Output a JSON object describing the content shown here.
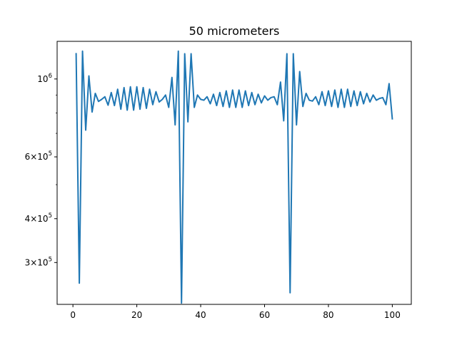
{
  "chart_data": {
    "type": "line",
    "title": "50 micrometers",
    "xlabel": "",
    "ylabel": "",
    "xlim": [
      -4.95,
      105.95
    ],
    "ylim": [
      228000,
      1280000
    ],
    "yscale": "log",
    "grid": false,
    "line_color": "#1f77b4",
    "x_ticks": [
      {
        "value": 0,
        "label": "0"
      },
      {
        "value": 20,
        "label": "20"
      },
      {
        "value": 40,
        "label": "40"
      },
      {
        "value": 60,
        "label": "60"
      },
      {
        "value": 80,
        "label": "80"
      },
      {
        "value": 100,
        "label": "100"
      }
    ],
    "y_ticks": [
      {
        "value": 300000,
        "base": "3",
        "exp": "5"
      },
      {
        "value": 400000,
        "base": "4",
        "exp": "5"
      },
      {
        "value": 600000,
        "base": "6",
        "exp": "5"
      },
      {
        "value": 1000000,
        "base": "",
        "exp": "6"
      }
    ],
    "y_minor_ticks": [
      500000,
      700000,
      800000,
      900000
    ],
    "series": [
      {
        "x": [
          1,
          2,
          3,
          4,
          5,
          6,
          7,
          8,
          9,
          10,
          11,
          12,
          13,
          14,
          15,
          16,
          17,
          18,
          19,
          20,
          21,
          22,
          23,
          24,
          25,
          26,
          27,
          28,
          29,
          30,
          31,
          32,
          33,
          34,
          35,
          36,
          37,
          38,
          39,
          40,
          41,
          42,
          43,
          44,
          45,
          46,
          47,
          48,
          49,
          50,
          51,
          52,
          53,
          54,
          55,
          56,
          57,
          58,
          59,
          60,
          61,
          62,
          63,
          64,
          65,
          66,
          67,
          68,
          69,
          70,
          71,
          72,
          73,
          74,
          75,
          76,
          77,
          78,
          79,
          80,
          81,
          82,
          83,
          84,
          85,
          86,
          87,
          88,
          89,
          90,
          91,
          92,
          93,
          94,
          95,
          96,
          97,
          98,
          99,
          100
        ],
        "y": [
          1180000,
          262000,
          1200000,
          715000,
          1020000,
          805000,
          910000,
          863000,
          875000,
          890000,
          842000,
          915000,
          840000,
          935000,
          820000,
          945000,
          815000,
          950000,
          815000,
          950000,
          820000,
          945000,
          825000,
          935000,
          845000,
          920000,
          860000,
          875000,
          900000,
          830000,
          1010000,
          740000,
          1200000,
          230000,
          1180000,
          755000,
          1180000,
          830000,
          900000,
          875000,
          870000,
          890000,
          850000,
          905000,
          840000,
          915000,
          835000,
          925000,
          830000,
          930000,
          830000,
          930000,
          830000,
          925000,
          840000,
          915000,
          845000,
          905000,
          855000,
          895000,
          870000,
          885000,
          890000,
          845000,
          980000,
          760000,
          1180000,
          246000,
          1180000,
          740000,
          1050000,
          835000,
          910000,
          870000,
          865000,
          890000,
          845000,
          920000,
          840000,
          925000,
          835000,
          930000,
          830000,
          935000,
          830000,
          935000,
          835000,
          925000,
          840000,
          920000,
          850000,
          910000,
          860000,
          900000,
          870000,
          880000,
          885000,
          845000,
          970000,
          770000
        ]
      }
    ]
  }
}
